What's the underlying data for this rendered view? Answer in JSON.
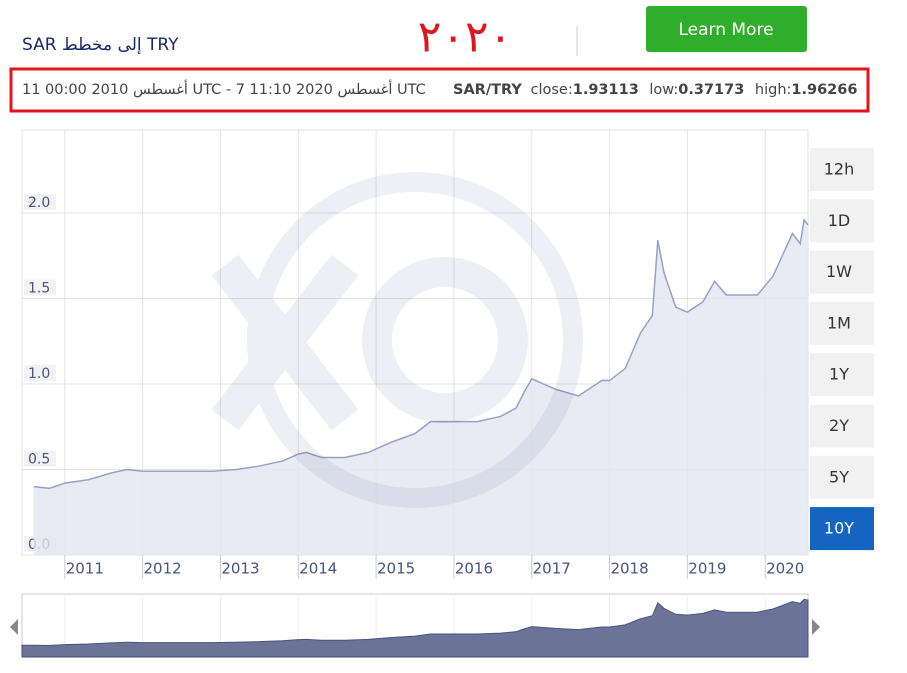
{
  "header": {
    "title": "SAR إلى مخطط TRY",
    "year": "٢٠٢٠",
    "button": "Learn More"
  },
  "info": {
    "range": "11 00:00 2010 أغسطس UTC - 7 11:10 2020 أغسطس UTC",
    "pair": "SAR/TRY",
    "close_label": "close:",
    "close": "1.93113",
    "low_label": "low:",
    "low": "0.37173",
    "high_label": "high:",
    "high": "1.96266"
  },
  "ranges": {
    "items": [
      "12h",
      "1D",
      "1W",
      "1M",
      "1Y",
      "2Y",
      "5Y",
      "10Y"
    ],
    "active": "10Y"
  },
  "chart_data": {
    "type": "area",
    "color": "#9aa0c4",
    "fill": "#e4e6f1",
    "navigator_fill": "#6b7399",
    "grid": true,
    "x": [
      2010.6,
      2010.8,
      2011.0,
      2011.3,
      2011.6,
      2011.8,
      2012.0,
      2012.3,
      2012.6,
      2012.9,
      2013.2,
      2013.5,
      2013.8,
      2014.0,
      2014.1,
      2014.3,
      2014.6,
      2014.9,
      2015.2,
      2015.5,
      2015.7,
      2016.0,
      2016.3,
      2016.6,
      2016.8,
      2016.9,
      2017.0,
      2017.3,
      2017.6,
      2017.9,
      2018.0,
      2018.2,
      2018.4,
      2018.55,
      2018.62,
      2018.7,
      2018.85,
      2019.0,
      2019.2,
      2019.35,
      2019.5,
      2019.7,
      2019.9,
      2020.1,
      2020.25,
      2020.35,
      2020.45,
      2020.5,
      2020.55
    ],
    "values": [
      0.4,
      0.39,
      0.42,
      0.44,
      0.48,
      0.5,
      0.49,
      0.49,
      0.49,
      0.49,
      0.5,
      0.52,
      0.55,
      0.59,
      0.6,
      0.57,
      0.57,
      0.6,
      0.66,
      0.71,
      0.78,
      0.78,
      0.78,
      0.81,
      0.86,
      0.95,
      1.03,
      0.97,
      0.93,
      1.02,
      1.02,
      1.09,
      1.3,
      1.4,
      1.84,
      1.65,
      1.45,
      1.42,
      1.48,
      1.6,
      1.52,
      1.52,
      1.52,
      1.63,
      1.78,
      1.88,
      1.82,
      1.96,
      1.93
    ],
    "xlim": [
      2010.45,
      2020.55
    ],
    "xticks": [
      2011,
      2012,
      2013,
      2014,
      2015,
      2016,
      2017,
      2018,
      2019,
      2020
    ],
    "ylim": [
      0,
      2.485
    ],
    "yticks": [
      {
        "value": 0,
        "label": "0.0"
      },
      0.5,
      {
        "value": 1,
        "label": "1.0"
      },
      1.5,
      {
        "value": 2,
        "label": "2.0"
      }
    ]
  }
}
